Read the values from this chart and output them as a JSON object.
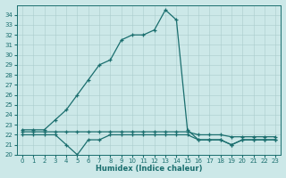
{
  "background_color": "#cce8e8",
  "line_color": "#1a6e6e",
  "grid_color": "#aacccc",
  "xlabel": "Humidex (Indice chaleur)",
  "xlim": [
    -0.5,
    23.5
  ],
  "ylim": [
    20,
    35
  ],
  "xticks": [
    0,
    1,
    2,
    3,
    4,
    5,
    6,
    7,
    8,
    9,
    10,
    11,
    12,
    13,
    14,
    15,
    16,
    17,
    18,
    19,
    20,
    21,
    22,
    23
  ],
  "yticks": [
    20,
    21,
    22,
    23,
    24,
    25,
    26,
    27,
    28,
    29,
    30,
    31,
    32,
    33,
    34
  ],
  "series1_y": [
    22.5,
    22.5,
    22.5,
    23.5,
    24.5,
    26.0,
    27.5,
    29.0,
    29.5,
    31.5,
    32.0,
    32.0,
    32.5,
    34.5,
    33.5,
    22.5,
    21.5,
    21.5,
    21.5,
    21.0,
    21.5,
    21.5,
    21.5,
    21.5
  ],
  "series2_y": [
    22.0,
    22.0,
    22.0,
    22.0,
    21.0,
    20.0,
    21.5,
    21.5,
    22.0,
    22.0,
    22.0,
    22.0,
    22.0,
    22.0,
    22.0,
    22.0,
    21.5,
    21.5,
    21.5,
    21.0,
    21.5,
    21.5,
    21.5,
    21.5
  ],
  "series3_y": [
    22.3,
    22.3,
    22.3,
    22.3,
    22.3,
    22.3,
    22.3,
    22.3,
    22.3,
    22.3,
    22.3,
    22.3,
    22.3,
    22.3,
    22.3,
    22.3,
    22.0,
    22.0,
    22.0,
    21.8,
    21.8,
    21.8,
    21.8,
    21.8
  ]
}
